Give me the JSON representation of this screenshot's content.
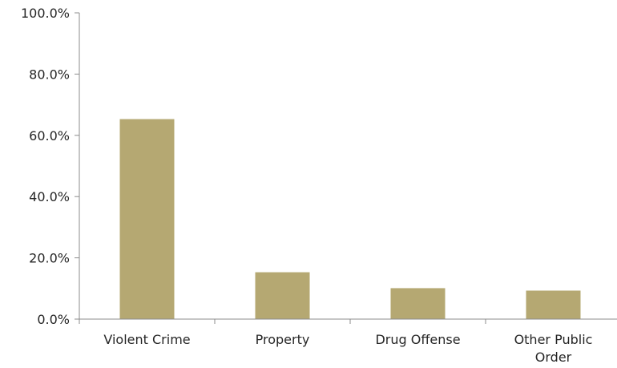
{
  "chart_data": {
    "type": "bar",
    "title": "",
    "xlabel": "",
    "ylabel": "",
    "categories": [
      [
        "Violent Crime"
      ],
      [
        "Property"
      ],
      [
        "Drug Offense"
      ],
      [
        "Other Public",
        "Order"
      ]
    ],
    "values": [
      65.3,
      15.3,
      10.1,
      9.3
    ],
    "ylim": [
      0,
      100
    ],
    "yticks": [
      0,
      20,
      40,
      60,
      80,
      100
    ],
    "ytick_labels": [
      "0.0%",
      "20.0%",
      "40.0%",
      "60.0%",
      "80.0%",
      "100.0%"
    ],
    "value_format": "percent",
    "grid": false,
    "legend": "none",
    "colors": {
      "bar": "#b5a872",
      "axis": "#8c8c8c",
      "text": "#262626"
    }
  }
}
